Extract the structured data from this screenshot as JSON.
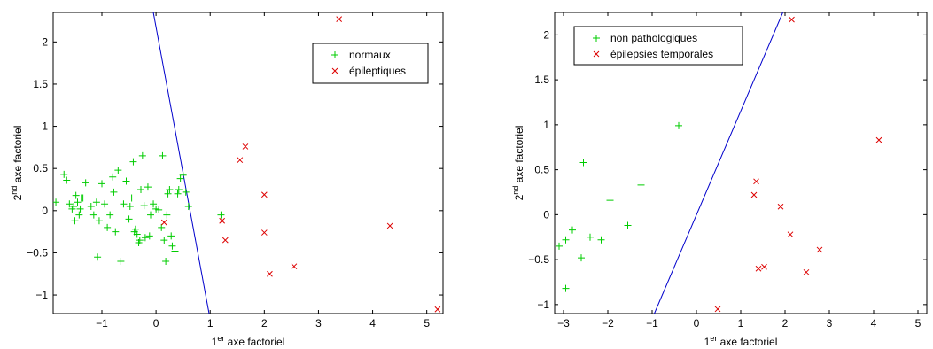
{
  "chart_data": [
    {
      "type": "scatter",
      "title": "",
      "xlabel": {
        "prefix": "1",
        "sup": "er",
        "rest": " axe factoriel"
      },
      "ylabel": {
        "prefix": "2",
        "sup": "nd",
        "rest": " axe factoriel"
      },
      "xlim": [
        -1.9,
        5.3
      ],
      "ylim": [
        -1.22,
        2.35
      ],
      "xticks": [
        -1,
        0,
        1,
        2,
        3,
        4,
        5
      ],
      "yticks": [
        -1,
        -0.5,
        0,
        0.5,
        1,
        1.5,
        2
      ],
      "grid": false,
      "legend": "top-right",
      "separator": {
        "color": "#0000cc",
        "x": [
          -0.05,
          0.98
        ],
        "y": [
          2.35,
          -1.22
        ]
      },
      "series": [
        {
          "name": "normaux",
          "marker": "plus",
          "color": "#00cc00",
          "x": [
            -1.85,
            -1.7,
            -1.65,
            -1.6,
            -1.55,
            -1.52,
            -1.5,
            -1.48,
            -1.45,
            -1.42,
            -1.4,
            -1.38,
            -1.35,
            -1.3,
            -1.2,
            -1.15,
            -1.1,
            -1.08,
            -1.05,
            -1.0,
            -0.95,
            -0.9,
            -0.85,
            -0.8,
            -0.78,
            -0.75,
            -0.7,
            -0.65,
            -0.6,
            -0.55,
            -0.5,
            -0.48,
            -0.45,
            -0.42,
            -0.4,
            -0.38,
            -0.35,
            -0.32,
            -0.3,
            -0.28,
            -0.25,
            -0.22,
            -0.2,
            -0.15,
            -0.12,
            -0.1,
            -0.05,
            0.0,
            0.05,
            0.1,
            0.12,
            0.15,
            0.18,
            0.2,
            0.22,
            0.25,
            0.28,
            0.3,
            0.35,
            0.4,
            0.42,
            0.45,
            0.5,
            0.55,
            0.6,
            1.2
          ],
          "y": [
            0.1,
            0.43,
            0.36,
            0.08,
            0.02,
            0.05,
            -0.12,
            0.18,
            0.1,
            -0.05,
            0.02,
            0.15,
            0.15,
            0.33,
            0.05,
            -0.05,
            0.1,
            -0.55,
            -0.12,
            0.32,
            0.08,
            -0.2,
            -0.05,
            0.4,
            0.22,
            -0.25,
            0.48,
            -0.6,
            0.08,
            0.35,
            -0.1,
            0.05,
            0.15,
            0.58,
            -0.25,
            -0.22,
            -0.28,
            -0.38,
            -0.35,
            0.25,
            0.65,
            0.06,
            -0.32,
            0.28,
            -0.3,
            -0.05,
            0.08,
            0.02,
            0.01,
            -0.2,
            0.65,
            -0.35,
            -0.6,
            -0.05,
            0.2,
            0.25,
            -0.3,
            -0.42,
            -0.48,
            0.2,
            0.25,
            0.38,
            0.42,
            0.22,
            0.05,
            -0.05
          ]
        },
        {
          "name": "épileptiques",
          "marker": "x",
          "color": "#dd0000",
          "x": [
            0.15,
            1.22,
            1.28,
            1.55,
            1.65,
            2.0,
            2.0,
            2.1,
            2.55,
            3.38,
            4.32,
            5.2
          ],
          "y": [
            -0.14,
            -0.12,
            -0.35,
            0.6,
            0.76,
            0.19,
            -0.26,
            -0.75,
            -0.66,
            2.27,
            -0.18,
            -1.17
          ]
        }
      ]
    },
    {
      "type": "scatter",
      "title": "",
      "xlabel": {
        "prefix": "1",
        "sup": "er",
        "rest": " axe factoriel"
      },
      "ylabel": {
        "prefix": "2",
        "sup": "nd",
        "rest": " axe factoriel"
      },
      "xlim": [
        -3.2,
        5.2
      ],
      "ylim": [
        -1.1,
        2.25
      ],
      "xticks": [
        -3,
        -2,
        -1,
        0,
        1,
        2,
        3,
        4,
        5
      ],
      "yticks": [
        -1,
        -0.5,
        0,
        0.5,
        1,
        1.5,
        2
      ],
      "grid": false,
      "legend": "top-left",
      "separator": {
        "color": "#0000cc",
        "x": [
          -0.95,
          1.95
        ],
        "y": [
          -1.1,
          2.25
        ]
      },
      "series": [
        {
          "name": "non pathologiques",
          "marker": "plus",
          "color": "#00cc00",
          "x": [
            -3.1,
            -2.95,
            -2.95,
            -2.8,
            -2.6,
            -2.55,
            -2.4,
            -2.15,
            -1.95,
            -1.55,
            -1.25,
            -0.4
          ],
          "y": [
            -0.35,
            -0.28,
            -0.82,
            -0.17,
            -0.48,
            0.58,
            -0.25,
            -0.28,
            0.16,
            -0.12,
            0.33,
            0.99
          ]
        },
        {
          "name": "épilepsies temporales",
          "marker": "x",
          "color": "#dd0000",
          "x": [
            0.48,
            1.3,
            1.35,
            1.4,
            1.53,
            1.9,
            2.12,
            2.15,
            2.48,
            2.78,
            4.12
          ],
          "y": [
            -1.05,
            0.22,
            0.37,
            -0.6,
            -0.58,
            0.09,
            -0.22,
            2.17,
            -0.64,
            -0.39,
            0.83
          ]
        }
      ]
    }
  ]
}
